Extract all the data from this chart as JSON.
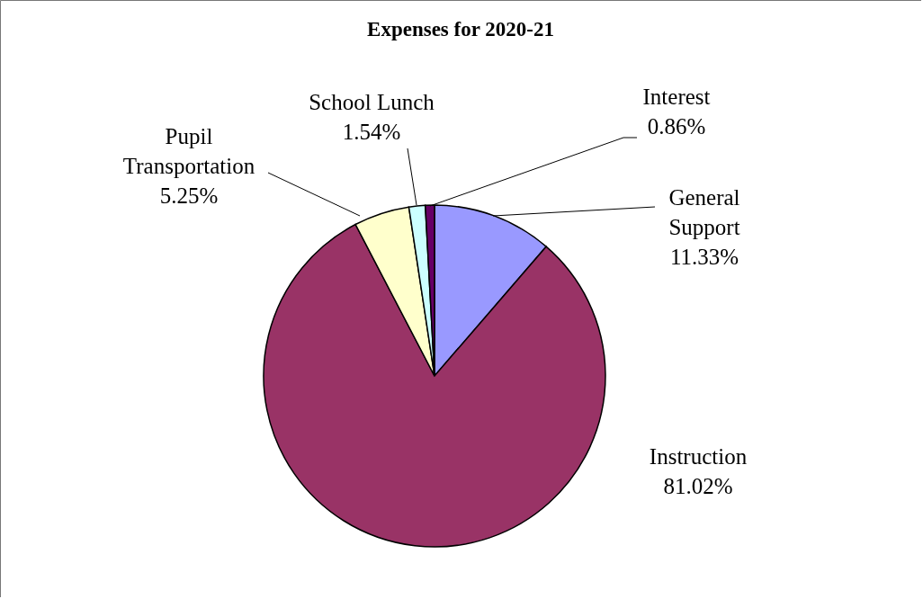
{
  "chart_data": {
    "type": "pie",
    "title": "Expenses for 2020-21",
    "categories": [
      "General Support",
      "Instruction",
      "Pupil Transportation",
      "School Lunch",
      "Interest"
    ],
    "values": [
      11.33,
      81.02,
      5.25,
      1.54,
      0.86
    ],
    "value_labels": [
      "11.33%",
      "81.02%",
      "5.25%",
      "1.54%",
      "0.86%"
    ],
    "colors": [
      "#9999ff",
      "#993366",
      "#ffffcc",
      "#ccffff",
      "#660066"
    ]
  }
}
